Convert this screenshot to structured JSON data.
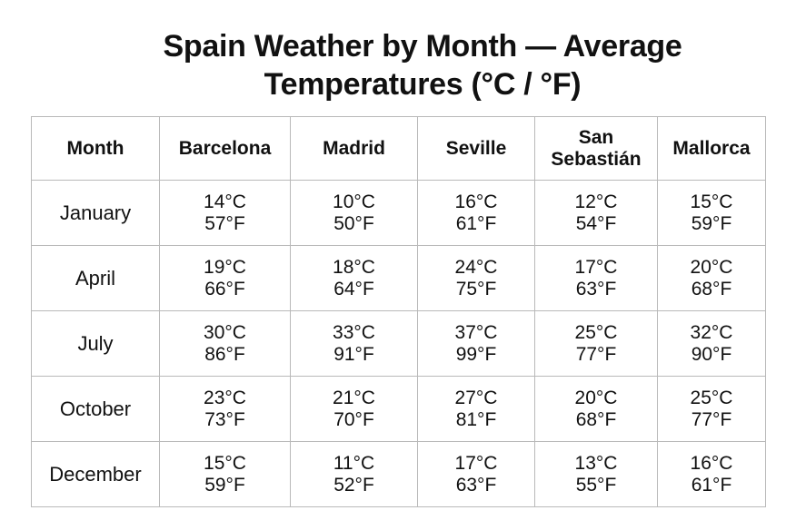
{
  "chart_data": {
    "type": "table",
    "title": "Spain Weather by Month — Average Temperatures (°C / °F)",
    "title_lines": [
      "Spain Weather by Month — Average",
      "Temperatures (°C / °F)"
    ],
    "columns": [
      "Month",
      "Barcelona",
      "Madrid",
      "Seville",
      "San Sebastián",
      "Mallorca"
    ],
    "rows": [
      {
        "month": "January",
        "cells": [
          {
            "c": "14°C",
            "f": "57°F"
          },
          {
            "c": "10°C",
            "f": "50°F"
          },
          {
            "c": "16°C",
            "f": "61°F"
          },
          {
            "c": "12°C",
            "f": "54°F"
          },
          {
            "c": "15°C",
            "f": "59°F"
          }
        ]
      },
      {
        "month": "April",
        "cells": [
          {
            "c": "19°C",
            "f": "66°F"
          },
          {
            "c": "18°C",
            "f": "64°F"
          },
          {
            "c": "24°C",
            "f": "75°F"
          },
          {
            "c": "17°C",
            "f": "63°F"
          },
          {
            "c": "20°C",
            "f": "68°F"
          }
        ]
      },
      {
        "month": "July",
        "cells": [
          {
            "c": "30°C",
            "f": "86°F"
          },
          {
            "c": "33°C",
            "f": "91°F"
          },
          {
            "c": "37°C",
            "f": "99°F"
          },
          {
            "c": "25°C",
            "f": "77°F"
          },
          {
            "c": "32°C",
            "f": "90°F"
          }
        ]
      },
      {
        "month": "October",
        "cells": [
          {
            "c": "23°C",
            "f": "73°F"
          },
          {
            "c": "21°C",
            "f": "70°F"
          },
          {
            "c": "27°C",
            "f": "81°F"
          },
          {
            "c": "20°C",
            "f": "68°F"
          },
          {
            "c": "25°C",
            "f": "77°F"
          }
        ]
      },
      {
        "month": "December",
        "cells": [
          {
            "c": "15°C",
            "f": "59°F"
          },
          {
            "c": "11°C",
            "f": "52°F"
          },
          {
            "c": "17°C",
            "f": "63°F"
          },
          {
            "c": "13°C",
            "f": "55°F"
          },
          {
            "c": "16°C",
            "f": "61°F"
          }
        ]
      }
    ]
  },
  "colors": {
    "text": "#111111",
    "grid": "#b9b9b9",
    "background": "#ffffff"
  }
}
